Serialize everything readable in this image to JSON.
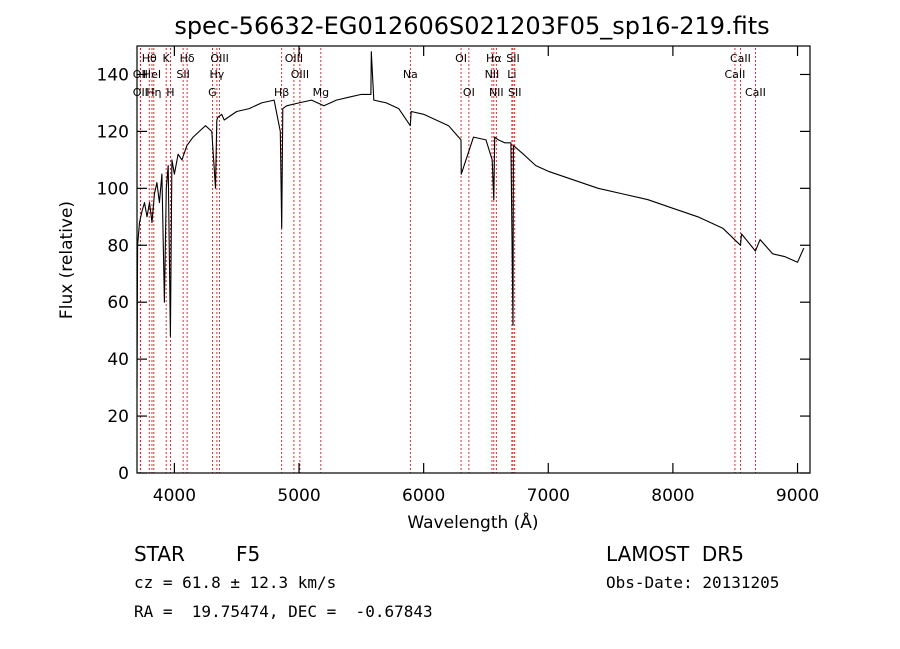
{
  "chart_data": {
    "type": "line",
    "title": "spec-56632-EG012606S021203F05_sp16-219.fits",
    "xlabel": "Wavelength (Å)",
    "ylabel": "Flux (relative)",
    "xlim": [
      3700,
      9100
    ],
    "ylim": [
      0,
      150
    ],
    "xticks": [
      4000,
      5000,
      6000,
      7000,
      8000,
      9000
    ],
    "yticks": [
      0,
      20,
      40,
      60,
      80,
      100,
      120,
      140
    ],
    "grid": false,
    "line_color": "#000000",
    "marker_color": "#cc0000",
    "series": [
      {
        "x": [
          3700,
          3705,
          3720,
          3740,
          3760,
          3780,
          3800,
          3820,
          3840,
          3860,
          3880,
          3900,
          3920,
          3935,
          3950,
          3968,
          3980,
          4000,
          4030,
          4060,
          4100,
          4150,
          4200,
          4250,
          4300,
          4330,
          4340,
          4350,
          4380,
          4400,
          4500,
          4600,
          4700,
          4800,
          4850,
          4861,
          4870,
          4900,
          5000,
          5100,
          5200,
          5300,
          5400,
          5500,
          5577,
          5580,
          5600,
          5700,
          5800,
          5893,
          5900,
          6000,
          6100,
          6200,
          6300,
          6302,
          6400,
          6500,
          6550,
          6563,
          6570,
          6600,
          6650,
          6700,
          6717,
          6720,
          6800,
          6900,
          7000,
          7200,
          7400,
          7600,
          7800,
          8000,
          8200,
          8400,
          8542,
          8550,
          8662,
          8700,
          8800,
          8900,
          9000,
          9050
        ],
        "y": [
          30,
          80,
          88,
          92,
          95,
          90,
          95,
          88,
          98,
          102,
          95,
          105,
          60,
          100,
          108,
          48,
          110,
          105,
          112,
          110,
          115,
          118,
          120,
          122,
          120,
          100,
          124,
          125,
          126,
          124,
          127,
          128,
          130,
          131,
          120,
          86,
          128,
          129,
          130,
          131,
          129,
          131,
          132,
          133,
          133,
          148,
          131,
          130,
          128,
          122,
          127,
          126,
          124,
          122,
          117,
          105,
          118,
          117,
          110,
          96,
          118,
          117,
          116,
          116,
          52,
          115,
          112,
          108,
          106,
          103,
          100,
          98,
          96,
          93,
          90,
          86,
          80,
          84,
          78,
          82,
          77,
          76,
          74,
          79
        ]
      }
    ],
    "line_markers": [
      {
        "label": "Hθ",
        "x": 3798,
        "row": 0
      },
      {
        "label": "OII",
        "x": 3727,
        "row": 1
      },
      {
        "label": "HeI",
        "x": 3820,
        "row": 1
      },
      {
        "label": "OII",
        "x": 3727,
        "row": 2
      },
      {
        "label": "Hη",
        "x": 3835,
        "row": 2
      },
      {
        "label": "K",
        "x": 3934,
        "row": 0
      },
      {
        "label": "SII",
        "x": 4070,
        "row": 1
      },
      {
        "label": "H",
        "x": 3968,
        "row": 2
      },
      {
        "label": "Hδ",
        "x": 4102,
        "row": 0
      },
      {
        "label": "OIII",
        "x": 4363,
        "row": 0
      },
      {
        "label": "Hγ",
        "x": 4341,
        "row": 1
      },
      {
        "label": "G",
        "x": 4305,
        "row": 2
      },
      {
        "label": "Hβ",
        "x": 4861,
        "row": 2
      },
      {
        "label": "OIII",
        "x": 4959,
        "row": 0
      },
      {
        "label": "OIII",
        "x": 5007,
        "row": 1
      },
      {
        "label": "Mg",
        "x": 5175,
        "row": 2
      },
      {
        "label": "Na",
        "x": 5893,
        "row": 1
      },
      {
        "label": "OI",
        "x": 6300,
        "row": 0
      },
      {
        "label": "OI",
        "x": 6363,
        "row": 2
      },
      {
        "label": "Hα",
        "x": 6563,
        "row": 0
      },
      {
        "label": "NII",
        "x": 6548,
        "row": 1
      },
      {
        "label": "NII",
        "x": 6583,
        "row": 2
      },
      {
        "label": "SII",
        "x": 6717,
        "row": 0
      },
      {
        "label": "Li",
        "x": 6708,
        "row": 1
      },
      {
        "label": "SII",
        "x": 6731,
        "row": 2
      },
      {
        "label": "CaII",
        "x": 8542,
        "row": 0
      },
      {
        "label": "CaII",
        "x": 8498,
        "row": 1
      },
      {
        "label": "CaII",
        "x": 8662,
        "row": 2
      }
    ]
  },
  "info": {
    "object_type": "STAR",
    "subclass": "F5",
    "survey": "LAMOST  DR5",
    "cz": "cz = 61.8 ± 12.3 km/s",
    "obs_date": "Obs-Date: 20131205",
    "coords": "RA =  19.75474, DEC =  -0.67843"
  }
}
